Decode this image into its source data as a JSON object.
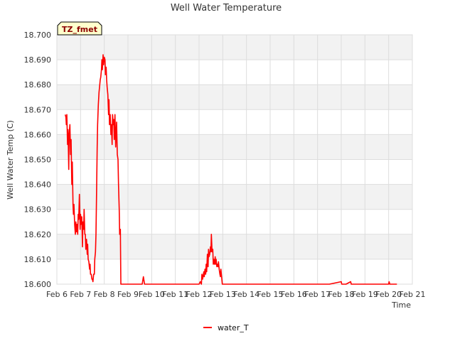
{
  "chart_data": {
    "type": "line",
    "title": "Well Water Temperature",
    "xlabel": "Time",
    "ylabel": "Well Water Temp (C)",
    "badge": "TZ_fmet",
    "xlim": [
      6,
      21
    ],
    "ylim": [
      18.6,
      18.7
    ],
    "x_ticks": [
      6,
      7,
      8,
      9,
      10,
      11,
      12,
      13,
      14,
      15,
      16,
      17,
      18,
      19,
      20,
      21
    ],
    "x_tick_labels": [
      "Feb 6",
      "Feb 7",
      "Feb 8",
      "Feb 9",
      "Feb 10",
      "Feb 11",
      "Feb 12",
      "Feb 13",
      "Feb 14",
      "Feb 15",
      "Feb 16",
      "Feb 17",
      "Feb 18",
      "Feb 19",
      "Feb 20",
      "Feb 21"
    ],
    "y_ticks": [
      18.6,
      18.61,
      18.62,
      18.63,
      18.64,
      18.65,
      18.66,
      18.67,
      18.68,
      18.69,
      18.7
    ],
    "y_tick_labels": [
      "18.600",
      "18.610",
      "18.620",
      "18.630",
      "18.640",
      "18.650",
      "18.660",
      "18.670",
      "18.680",
      "18.690",
      "18.700"
    ],
    "grid": true,
    "legend_position": "bottom-center",
    "colors": {
      "series": "#ff0000",
      "band": "#f2f2f2",
      "grid": "#dddddd"
    },
    "series": [
      {
        "name": "water_T",
        "x": [
          6.35,
          6.38,
          6.4,
          6.42,
          6.45,
          6.47,
          6.5,
          6.52,
          6.55,
          6.58,
          6.6,
          6.63,
          6.65,
          6.68,
          6.7,
          6.72,
          6.75,
          6.78,
          6.8,
          6.83,
          6.85,
          6.88,
          6.9,
          6.92,
          6.95,
          6.98,
          7.0,
          7.03,
          7.05,
          7.08,
          7.1,
          7.13,
          7.15,
          7.18,
          7.2,
          7.22,
          7.25,
          7.28,
          7.3,
          7.32,
          7.35,
          7.38,
          7.4,
          7.42,
          7.45,
          7.48,
          7.5,
          7.52,
          7.55,
          7.58,
          7.6,
          7.63,
          7.65,
          7.68,
          7.7,
          7.72,
          7.75,
          7.78,
          7.8,
          7.83,
          7.85,
          7.88,
          7.9,
          7.92,
          7.95,
          7.97,
          8.0,
          8.03,
          8.05,
          8.08,
          8.1,
          8.12,
          8.15,
          8.18,
          8.2,
          8.22,
          8.25,
          8.28,
          8.3,
          8.33,
          8.35,
          8.38,
          8.4,
          8.42,
          8.45,
          8.48,
          8.5,
          8.52,
          8.55,
          8.58,
          8.6,
          8.63,
          8.65,
          8.68,
          8.7,
          8.72,
          8.75,
          8.78,
          8.8,
          8.82,
          8.85,
          8.88,
          8.9,
          8.92,
          8.95,
          8.97,
          9.0,
          9.03,
          9.05,
          9.08,
          9.1,
          9.12,
          9.15,
          9.18,
          9.2,
          9.25,
          9.3,
          9.4,
          9.5,
          9.6,
          9.65,
          9.7,
          9.72,
          9.75,
          9.78,
          9.8,
          9.85,
          9.9,
          10.0,
          10.2,
          10.5,
          10.8,
          10.95,
          11.0,
          11.05,
          11.2,
          11.5,
          11.8,
          11.95,
          12.0,
          12.05,
          12.1,
          12.12,
          12.15,
          12.2,
          12.22,
          12.25,
          12.28,
          12.3,
          12.32,
          12.35,
          12.38,
          12.4,
          12.42,
          12.45,
          12.48,
          12.5,
          12.52,
          12.55,
          12.58,
          12.6,
          12.62,
          12.65,
          12.68,
          12.7,
          12.72,
          12.75,
          12.78,
          12.8,
          12.82,
          12.85,
          12.88,
          12.9,
          12.92,
          12.95,
          12.98,
          13.0,
          13.05,
          13.1,
          13.15,
          13.2,
          13.3,
          13.5,
          13.8,
          14.0,
          14.02,
          14.05,
          14.5,
          15.0,
          15.5,
          16.0,
          16.5,
          17.0,
          17.5,
          18.0,
          18.02,
          18.05,
          18.2,
          18.4,
          18.42,
          18.45,
          18.6,
          18.8,
          19.0,
          19.02,
          19.05,
          19.3,
          19.5,
          19.52,
          19.55,
          19.8,
          20.0,
          20.02,
          20.05,
          20.3,
          20.35
        ],
        "values": [
          18.668,
          18.667,
          18.664,
          18.668,
          18.656,
          18.662,
          18.646,
          18.66,
          18.664,
          18.652,
          18.658,
          18.64,
          18.649,
          18.632,
          18.628,
          18.632,
          18.624,
          18.62,
          18.625,
          18.621,
          18.624,
          18.62,
          18.628,
          18.626,
          18.636,
          18.622,
          18.628,
          18.624,
          18.627,
          18.615,
          18.625,
          18.622,
          18.63,
          18.62,
          18.62,
          18.614,
          18.618,
          18.612,
          18.616,
          18.61,
          18.609,
          18.606,
          18.608,
          18.604,
          18.604,
          18.602,
          18.602,
          18.601,
          18.604,
          18.604,
          18.61,
          18.613,
          18.62,
          18.64,
          18.655,
          18.664,
          18.672,
          18.677,
          18.679,
          18.682,
          18.683,
          18.686,
          18.69,
          18.686,
          18.692,
          18.688,
          18.691,
          18.69,
          18.684,
          18.687,
          18.682,
          18.679,
          18.676,
          18.668,
          18.674,
          18.664,
          18.668,
          18.66,
          18.664,
          18.656,
          18.668,
          18.664,
          18.666,
          18.658,
          18.668,
          18.655,
          18.66,
          18.665,
          18.652,
          18.65,
          18.64,
          18.63,
          18.62,
          18.622,
          18.6,
          18.6,
          18.6,
          18.6,
          18.6,
          18.6,
          18.6,
          18.6,
          18.6,
          18.6,
          18.6,
          18.6,
          18.6,
          18.6,
          18.6,
          18.6,
          18.6,
          18.6,
          18.6,
          18.6,
          18.6,
          18.6,
          18.6,
          18.6,
          18.6,
          18.6,
          18.603,
          18.6,
          18.6,
          18.6,
          18.6,
          18.6,
          18.6,
          18.6,
          18.6,
          18.6,
          18.6,
          18.6,
          18.6,
          18.6,
          18.6,
          18.6,
          18.6,
          18.6,
          18.6,
          18.6,
          18.601,
          18.6,
          18.604,
          18.602,
          18.605,
          18.603,
          18.606,
          18.604,
          18.608,
          18.605,
          18.612,
          18.607,
          18.614,
          18.611,
          18.612,
          18.615,
          18.613,
          18.62,
          18.613,
          18.614,
          18.608,
          18.61,
          18.608,
          18.611,
          18.608,
          18.61,
          18.607,
          18.608,
          18.607,
          18.609,
          18.606,
          18.604,
          18.603,
          18.606,
          18.603,
          18.6,
          18.6,
          18.6,
          18.6,
          18.6,
          18.6,
          18.6,
          18.6,
          18.6,
          18.6,
          18.6,
          18.6,
          18.6,
          18.6,
          18.6,
          18.6,
          18.6,
          18.6,
          18.6,
          18.601,
          18.6,
          18.6,
          18.6,
          18.601,
          18.6,
          18.6,
          18.6,
          18.6,
          18.6,
          18.6,
          18.6,
          18.6,
          18.6,
          18.6,
          18.6,
          18.6,
          18.6,
          18.601,
          18.6,
          18.6,
          18.6
        ]
      }
    ]
  }
}
